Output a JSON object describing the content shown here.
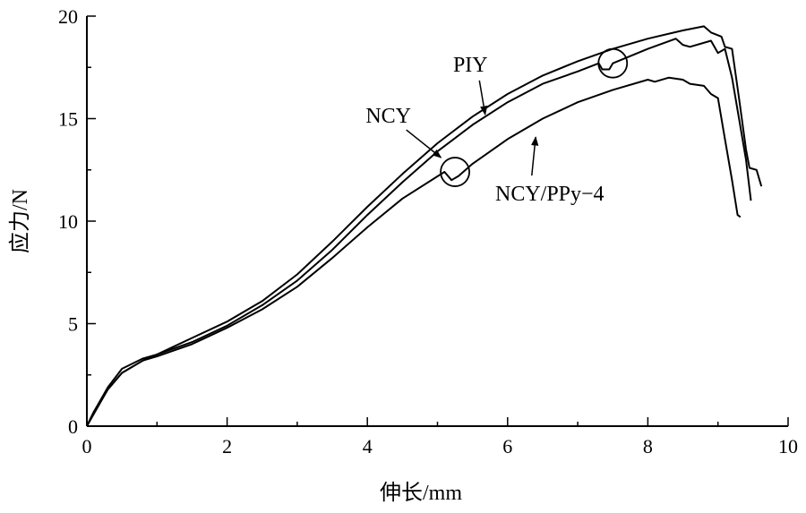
{
  "chart_data": {
    "type": "line",
    "title": "",
    "xlabel": "伸长/mm",
    "ylabel": "应力/N",
    "xlim": [
      0,
      10
    ],
    "ylim": [
      0,
      20
    ],
    "xticks": [
      0,
      2,
      4,
      6,
      8,
      10
    ],
    "yticks": [
      0,
      5,
      10,
      15,
      20
    ],
    "grid": false,
    "series": [
      {
        "name": "PIY",
        "points": [
          [
            0,
            0
          ],
          [
            0.1,
            0.6
          ],
          [
            0.3,
            1.8
          ],
          [
            0.5,
            2.6
          ],
          [
            0.8,
            3.2
          ],
          [
            1,
            3.5
          ],
          [
            1.5,
            4.3
          ],
          [
            2,
            5.1
          ],
          [
            2.5,
            6.1
          ],
          [
            3,
            7.4
          ],
          [
            3.5,
            9.0
          ],
          [
            4,
            10.7
          ],
          [
            4.5,
            12.3
          ],
          [
            5,
            13.8
          ],
          [
            5.5,
            15.1
          ],
          [
            6,
            16.2
          ],
          [
            6.5,
            17.1
          ],
          [
            7,
            17.8
          ],
          [
            7.5,
            18.4
          ],
          [
            8,
            18.9
          ],
          [
            8.5,
            19.3
          ],
          [
            8.8,
            19.5
          ],
          [
            8.9,
            19.2
          ],
          [
            9.05,
            19.0
          ],
          [
            9.1,
            18.5
          ],
          [
            9.2,
            18.4
          ],
          [
            9.3,
            16
          ],
          [
            9.4,
            13.5
          ],
          [
            9.45,
            12.6
          ],
          [
            9.55,
            12.5
          ],
          [
            9.62,
            11.7
          ]
        ]
      },
      {
        "name": "NCY",
        "points": [
          [
            0,
            0
          ],
          [
            0.1,
            0.7
          ],
          [
            0.3,
            1.9
          ],
          [
            0.5,
            2.8
          ],
          [
            0.8,
            3.3
          ],
          [
            1,
            3.5
          ],
          [
            1.5,
            4.1
          ],
          [
            2,
            4.9
          ],
          [
            2.5,
            5.9
          ],
          [
            3,
            7.1
          ],
          [
            3.5,
            8.6
          ],
          [
            4,
            10.3
          ],
          [
            4.5,
            11.9
          ],
          [
            5,
            13.4
          ],
          [
            5.5,
            14.7
          ],
          [
            6,
            15.8
          ],
          [
            6.5,
            16.7
          ],
          [
            7,
            17.3
          ],
          [
            7.3,
            17.7
          ],
          [
            7.35,
            17.4
          ],
          [
            7.45,
            17.4
          ],
          [
            7.5,
            17.7
          ],
          [
            8,
            18.4
          ],
          [
            8.4,
            18.9
          ],
          [
            8.5,
            18.6
          ],
          [
            8.6,
            18.5
          ],
          [
            8.9,
            18.8
          ],
          [
            9.0,
            18.2
          ],
          [
            9.1,
            18.4
          ],
          [
            9.2,
            17.0
          ],
          [
            9.3,
            15
          ],
          [
            9.4,
            13
          ],
          [
            9.47,
            11.0
          ]
        ]
      },
      {
        "name": "NCY/PPy-4",
        "points": [
          [
            0,
            0
          ],
          [
            0.1,
            0.7
          ],
          [
            0.3,
            1.8
          ],
          [
            0.5,
            2.6
          ],
          [
            0.8,
            3.2
          ],
          [
            1,
            3.4
          ],
          [
            1.5,
            4.0
          ],
          [
            2,
            4.8
          ],
          [
            2.5,
            5.7
          ],
          [
            3,
            6.8
          ],
          [
            3.5,
            8.2
          ],
          [
            4,
            9.7
          ],
          [
            4.5,
            11.1
          ],
          [
            5.1,
            12.4
          ],
          [
            5.2,
            12.0
          ],
          [
            5.3,
            12.2
          ],
          [
            5.5,
            12.8
          ],
          [
            6,
            14.0
          ],
          [
            6.5,
            15.0
          ],
          [
            7,
            15.8
          ],
          [
            7.5,
            16.4
          ],
          [
            8,
            16.9
          ],
          [
            8.1,
            16.8
          ],
          [
            8.3,
            17.0
          ],
          [
            8.5,
            16.9
          ],
          [
            8.6,
            16.7
          ],
          [
            8.8,
            16.6
          ],
          [
            8.9,
            16.2
          ],
          [
            9.0,
            16.0
          ],
          [
            9.1,
            14
          ],
          [
            9.2,
            12
          ],
          [
            9.28,
            10.3
          ],
          [
            9.32,
            10.2
          ]
        ]
      }
    ],
    "annotations": [
      {
        "text": "PIY",
        "at": [
          5.47,
          17.3
        ],
        "arrow_to": [
          5.68,
          15.2
        ]
      },
      {
        "text": "NCY",
        "at": [
          4.3,
          14.8
        ],
        "arrow_to": [
          5.05,
          13.1
        ]
      },
      {
        "text": "NCY/PPy−4",
        "at": [
          6.6,
          11.0
        ],
        "arrow_to": [
          6.4,
          14.1
        ]
      }
    ],
    "circles": [
      [
        7.5,
        17.7
      ],
      [
        5.25,
        12.4
      ]
    ]
  }
}
